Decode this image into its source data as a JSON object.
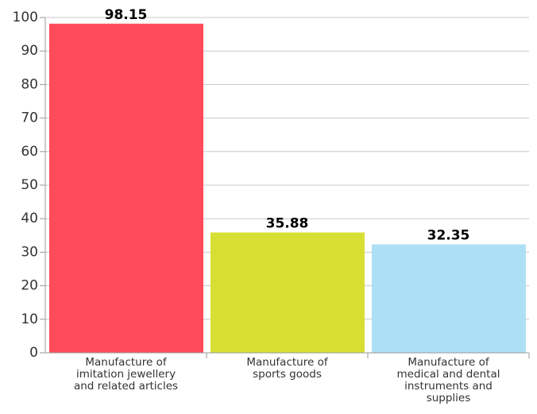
{
  "chart_data": {
    "type": "bar",
    "categories": [
      "Manufacture of imitation jewellery and related articles",
      "Manufacture of sports goods",
      "Manufacture of medical and dental instruments and supplies"
    ],
    "values": [
      98.15,
      35.88,
      32.35
    ],
    "colors": [
      "#ff4b5a",
      "#d7df32",
      "#aee0f5"
    ],
    "ylim": [
      0,
      100
    ],
    "yticks": [
      0,
      10,
      20,
      30,
      40,
      50,
      60,
      70,
      80,
      90,
      100
    ],
    "grid": true
  }
}
